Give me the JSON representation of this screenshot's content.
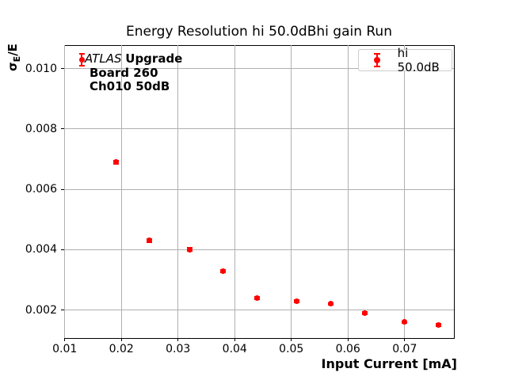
{
  "figure": {
    "title": "Energy Resolution hi 50.0dBhi gain Run",
    "xlabel": "Input Current [mA]",
    "ylabel_sigma": "σ",
    "ylabel_sub": "E",
    "ylabel_rest": "/E"
  },
  "annotation": {
    "line1_italic": "ATLAS",
    "line1_bold": "Upgrade",
    "line2": "Board 260",
    "line3": "Ch010 50dB"
  },
  "legend": {
    "label": "hi 50.0dB",
    "marker": "red-errorbar-point-icon"
  },
  "colors": {
    "series": "#ff0000",
    "grid": "#b0b0b0",
    "spine": "#000000",
    "legend_border": "#cccccc",
    "background": "#ffffff",
    "text": "#000000"
  },
  "chart_data": {
    "type": "scatter",
    "title": "Energy Resolution hi 50.0dBhi gain Run",
    "xlabel": "Input Current [mA]",
    "ylabel": "σ_E/E",
    "xlim": [
      0.0099,
      0.0787
    ],
    "ylim": [
      0.00107,
      0.01078
    ],
    "xticks": [
      0.01,
      0.02,
      0.03,
      0.04,
      0.05,
      0.06,
      0.07
    ],
    "xtick_labels": [
      "0.01",
      "0.02",
      "0.03",
      "0.04",
      "0.05",
      "0.06",
      "0.07"
    ],
    "yticks": [
      0.002,
      0.004,
      0.006,
      0.008,
      0.01
    ],
    "ytick_labels": [
      "0.002",
      "0.004",
      "0.006",
      "0.008",
      "0.010"
    ],
    "grid": true,
    "legend_position": "upper right",
    "series": [
      {
        "name": "hi 50.0dB",
        "color": "#ff0000",
        "marker": "circle",
        "style": "errorbar-scatter",
        "x": [
          0.013,
          0.019,
          0.025,
          0.032,
          0.038,
          0.044,
          0.051,
          0.057,
          0.063,
          0.07,
          0.076
        ],
        "y": [
          0.0103,
          0.0069,
          0.0043,
          0.004,
          0.0033,
          0.0024,
          0.0023,
          0.0022,
          0.0019,
          0.0016,
          0.0015
        ],
        "yerr": [
          0.0002,
          5e-05,
          5e-05,
          5e-05,
          4e-05,
          4e-05,
          4e-05,
          3e-05,
          3e-05,
          3e-05,
          3e-05
        ]
      }
    ]
  }
}
